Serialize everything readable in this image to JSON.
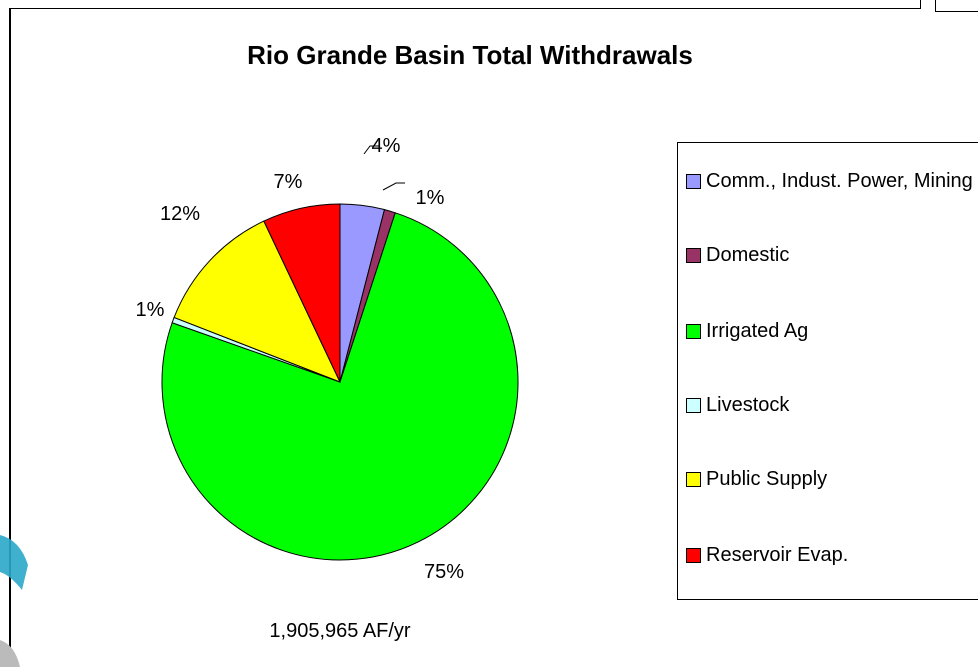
{
  "chart_data": {
    "type": "pie",
    "title": "Rio Grande Basin Total Withdrawals",
    "subtitle_total": "1,905,965 AF/yr",
    "slices": [
      {
        "label": "Comm., Indust. Power, Mining",
        "value": 4,
        "percent_label": "4%",
        "color": "#9999FF"
      },
      {
        "label": "Domestic",
        "value": 1,
        "percent_label": "1%",
        "color": "#993366"
      },
      {
        "label": "Irrigated Ag",
        "value": 75,
        "percent_label": "75%",
        "color": "#00FF00"
      },
      {
        "label": "Livestock",
        "value": 0.5,
        "percent_label": "1%",
        "color": "#CCFFFF"
      },
      {
        "label": "Public Supply",
        "value": 12,
        "percent_label": "12%",
        "color": "#FFFF00"
      },
      {
        "label": "Reservoir Evap.",
        "value": 7,
        "percent_label": "7%",
        "color": "#FF0000"
      }
    ],
    "legend_position": "right"
  }
}
